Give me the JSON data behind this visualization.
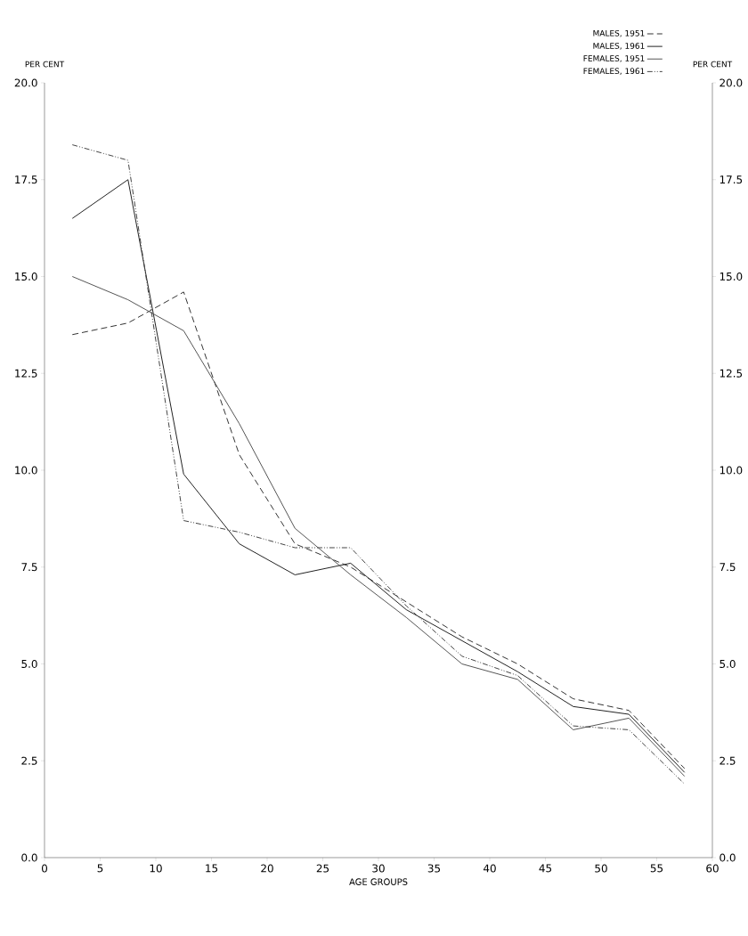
{
  "chart_data": {
    "type": "line",
    "xlabel": "AGE GROUPS",
    "ylabel": "PER CENT",
    "y2label": "PER CENT",
    "x": [
      2.5,
      7.5,
      12.5,
      17.5,
      22.5,
      27.5,
      32.5,
      37.5,
      42.5,
      47.5,
      52.5,
      57.5
    ],
    "series": [
      {
        "name": "MALES, 1951",
        "color": "#333333",
        "line_style": "dashed",
        "values": [
          13.5,
          13.8,
          14.6,
          10.4,
          8.1,
          7.5,
          6.6,
          5.7,
          5.0,
          4.1,
          3.8,
          2.3
        ]
      },
      {
        "name": "MALES, 1961",
        "color": "#222222",
        "line_style": "solid",
        "values": [
          16.5,
          17.5,
          9.9,
          8.1,
          7.3,
          7.6,
          6.4,
          5.6,
          4.8,
          3.9,
          3.7,
          2.2
        ]
      },
      {
        "name": "FEMALES, 1951",
        "color": "#555555",
        "line_style": "solid",
        "values": [
          15.0,
          14.4,
          13.6,
          11.2,
          8.5,
          7.3,
          6.2,
          5.0,
          4.6,
          3.3,
          3.6,
          2.1
        ]
      },
      {
        "name": "FEMALES, 1961",
        "color": "#444444",
        "line_style": "dashdotted",
        "values": [
          18.4,
          18.0,
          8.7,
          8.4,
          8.0,
          8.0,
          6.5,
          5.2,
          4.7,
          3.4,
          3.3,
          1.9
        ]
      }
    ],
    "xlim": [
      0,
      60
    ],
    "xticks": [
      0,
      5,
      10,
      15,
      20,
      25,
      30,
      35,
      40,
      45,
      50,
      55,
      60
    ],
    "ylim": [
      0,
      20
    ],
    "yticks": [
      {
        "value": 0,
        "label": "0.0"
      },
      {
        "value": 2.5,
        "label": "2.5"
      },
      {
        "value": 5,
        "label": "5.0"
      },
      {
        "value": 7.5,
        "label": "7.5"
      },
      {
        "value": 10,
        "label": "10.0"
      },
      {
        "value": 12.5,
        "label": "12.5"
      },
      {
        "value": 15,
        "label": "15.0"
      },
      {
        "value": 17.5,
        "label": "17.5"
      },
      {
        "value": 20,
        "label": "20.0"
      }
    ],
    "y2lim": [
      0,
      20
    ],
    "y2ticks": [
      {
        "value": 0,
        "label": "0.0"
      },
      {
        "value": 2.5,
        "label": "2.5"
      },
      {
        "value": 5,
        "label": "5.0"
      },
      {
        "value": 7.5,
        "label": "7.5"
      },
      {
        "value": 10,
        "label": "10.0"
      },
      {
        "value": 12.5,
        "label": "12.5"
      },
      {
        "value": 15,
        "label": "15.0"
      },
      {
        "value": 17.5,
        "label": "17.5"
      },
      {
        "value": 20,
        "label": "20.0"
      }
    ],
    "legend": "top right",
    "grid": false,
    "marker": "none"
  }
}
